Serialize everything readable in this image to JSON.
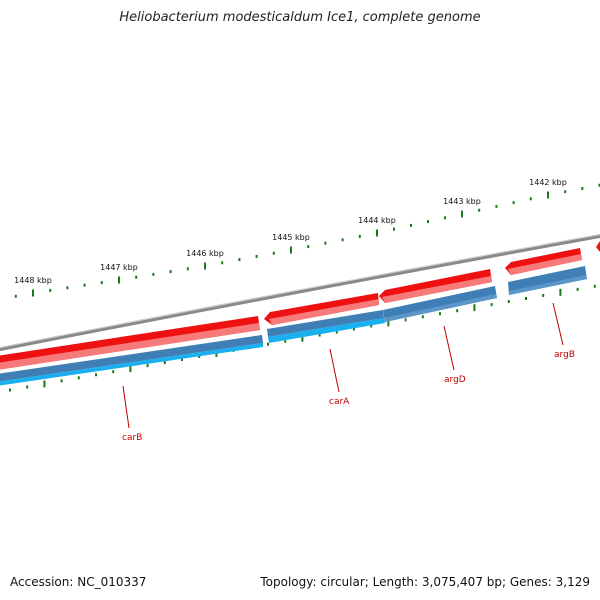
{
  "title": "Heliobacterium modesticaldum Ice1, complete genome",
  "footer": {
    "accession": "Accession: NC_010337",
    "stats": "Topology: circular; Length: 3,075,407 bp; Genes: 3,129"
  },
  "colors": {
    "backbone": "#8a8a8a",
    "forward_gene": "#ee1111",
    "cds_blue": "#3f7fb5",
    "cds_light": "#1ab0f0",
    "ticks": "#1a7a1a",
    "label": "#c00000"
  },
  "scale": {
    "unit": "kbp",
    "labels": [
      "1448 kbp",
      "1447 kbp",
      "1446 kbp",
      "1445 kbp",
      "1444 kbp",
      "1443 kbp",
      "1442 kbp"
    ]
  },
  "genes": [
    {
      "name": "carB"
    },
    {
      "name": "carA"
    },
    {
      "name": "argD"
    },
    {
      "name": "argB"
    }
  ]
}
